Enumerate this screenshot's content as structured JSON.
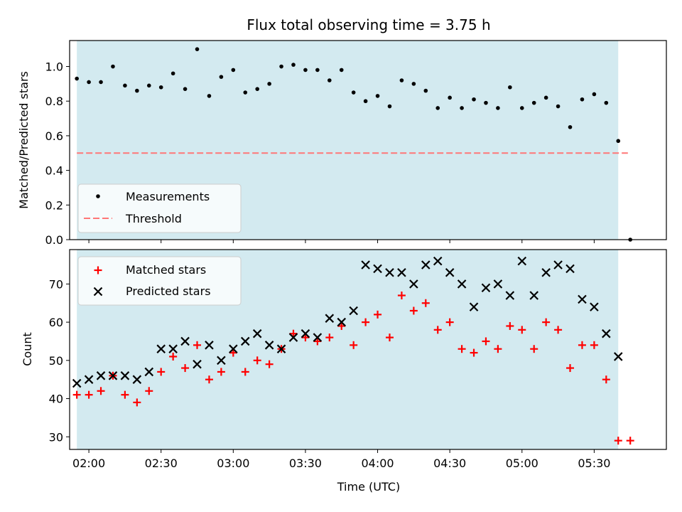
{
  "chart_data": {
    "title": "Flux total observing time = 3.75 h",
    "xlabel": "Time (UTC)",
    "x_ticks": [
      "02:00",
      "02:30",
      "03:00",
      "03:30",
      "04:00",
      "04:30",
      "05:00",
      "05:30"
    ],
    "x_range": [
      "01:52",
      "06:00"
    ],
    "observing_window": [
      "01:55",
      "05:40"
    ],
    "shade_color": "#d3eaf0",
    "top": {
      "type": "scatter",
      "ylabel": "Matched/Predicted stars",
      "ylim": [
        0,
        1.15
      ],
      "y_ticks": [
        "0.0",
        "0.2",
        "0.4",
        "0.6",
        "0.8",
        "1.0"
      ],
      "threshold": 0.5,
      "threshold_range": [
        "01:55",
        "05:44"
      ],
      "threshold_color": "#ff7777",
      "point_color": "#000000",
      "legend": [
        "Measurements",
        "Threshold"
      ],
      "legend_position": "lower-left",
      "x": [
        "01:55",
        "02:00",
        "02:05",
        "02:10",
        "02:15",
        "02:20",
        "02:25",
        "02:30",
        "02:35",
        "02:40",
        "02:45",
        "02:50",
        "02:55",
        "03:00",
        "03:05",
        "03:10",
        "03:15",
        "03:20",
        "03:25",
        "03:30",
        "03:35",
        "03:40",
        "03:45",
        "03:50",
        "03:55",
        "04:00",
        "04:05",
        "04:10",
        "04:15",
        "04:20",
        "04:25",
        "04:30",
        "04:35",
        "04:40",
        "04:45",
        "04:50",
        "04:55",
        "05:00",
        "05:05",
        "05:10",
        "05:15",
        "05:20",
        "05:25",
        "05:30",
        "05:35",
        "05:40",
        "05:45"
      ],
      "y": [
        0.93,
        0.91,
        0.91,
        1.0,
        0.89,
        0.86,
        0.89,
        0.88,
        0.96,
        0.87,
        1.1,
        0.83,
        0.94,
        0.98,
        0.85,
        0.87,
        0.9,
        1.0,
        1.01,
        0.98,
        0.98,
        0.92,
        0.98,
        0.85,
        0.8,
        0.83,
        0.77,
        0.92,
        0.9,
        0.86,
        0.76,
        0.82,
        0.76,
        0.81,
        0.79,
        0.76,
        0.88,
        0.76,
        0.79,
        0.82,
        0.77,
        0.65,
        0.81,
        0.84,
        0.79,
        0.57,
        0.0
      ]
    },
    "bottom": {
      "type": "scatter",
      "ylabel": "Count",
      "ylim": [
        26.7,
        79
      ],
      "y_ticks": [
        "30",
        "40",
        "50",
        "60",
        "70"
      ],
      "legend_position": "upper-left",
      "series": [
        {
          "name": "Matched stars",
          "color": "#ff0000",
          "marker": "plus",
          "x": [
            "01:55",
            "02:00",
            "02:05",
            "02:10",
            "02:15",
            "02:20",
            "02:25",
            "02:30",
            "02:35",
            "02:40",
            "02:45",
            "02:50",
            "02:55",
            "03:00",
            "03:05",
            "03:10",
            "03:15",
            "03:20",
            "03:25",
            "03:30",
            "03:35",
            "03:40",
            "03:45",
            "03:50",
            "03:55",
            "04:00",
            "04:05",
            "04:10",
            "04:15",
            "04:20",
            "04:25",
            "04:30",
            "04:35",
            "04:40",
            "04:45",
            "04:50",
            "04:55",
            "05:00",
            "05:05",
            "05:10",
            "05:15",
            "05:20",
            "05:25",
            "05:30",
            "05:35",
            "05:40",
            "05:45"
          ],
          "y": [
            41,
            41,
            42,
            46,
            41,
            39,
            42,
            47,
            51,
            48,
            54,
            45,
            47,
            52,
            47,
            50,
            49,
            53,
            57,
            56,
            55,
            56,
            59,
            54,
            60,
            62,
            56,
            67,
            63,
            65,
            58,
            60,
            53,
            52,
            55,
            53,
            59,
            58,
            53,
            60,
            58,
            48,
            54,
            54,
            45,
            29,
            29
          ]
        },
        {
          "name": "Predicted stars",
          "color": "#000000",
          "marker": "x",
          "x": [
            "01:55",
            "02:00",
            "02:05",
            "02:10",
            "02:15",
            "02:20",
            "02:25",
            "02:30",
            "02:35",
            "02:40",
            "02:45",
            "02:50",
            "02:55",
            "03:00",
            "03:05",
            "03:10",
            "03:15",
            "03:20",
            "03:25",
            "03:30",
            "03:35",
            "03:40",
            "03:45",
            "03:50",
            "03:55",
            "04:00",
            "04:05",
            "04:10",
            "04:15",
            "04:20",
            "04:25",
            "04:30",
            "04:35",
            "04:40",
            "04:45",
            "04:50",
            "04:55",
            "05:00",
            "05:05",
            "05:10",
            "05:15",
            "05:20",
            "05:25",
            "05:30",
            "05:35",
            "05:40"
          ],
          "y": [
            44,
            45,
            46,
            46,
            46,
            45,
            47,
            53,
            53,
            55,
            49,
            54,
            50,
            53,
            55,
            57,
            54,
            53,
            56,
            57,
            56,
            61,
            60,
            63,
            75,
            74,
            73,
            73,
            70,
            75,
            76,
            73,
            70,
            64,
            69,
            70,
            67,
            76,
            67,
            73,
            75,
            74,
            66,
            64,
            57,
            51
          ]
        }
      ]
    }
  }
}
